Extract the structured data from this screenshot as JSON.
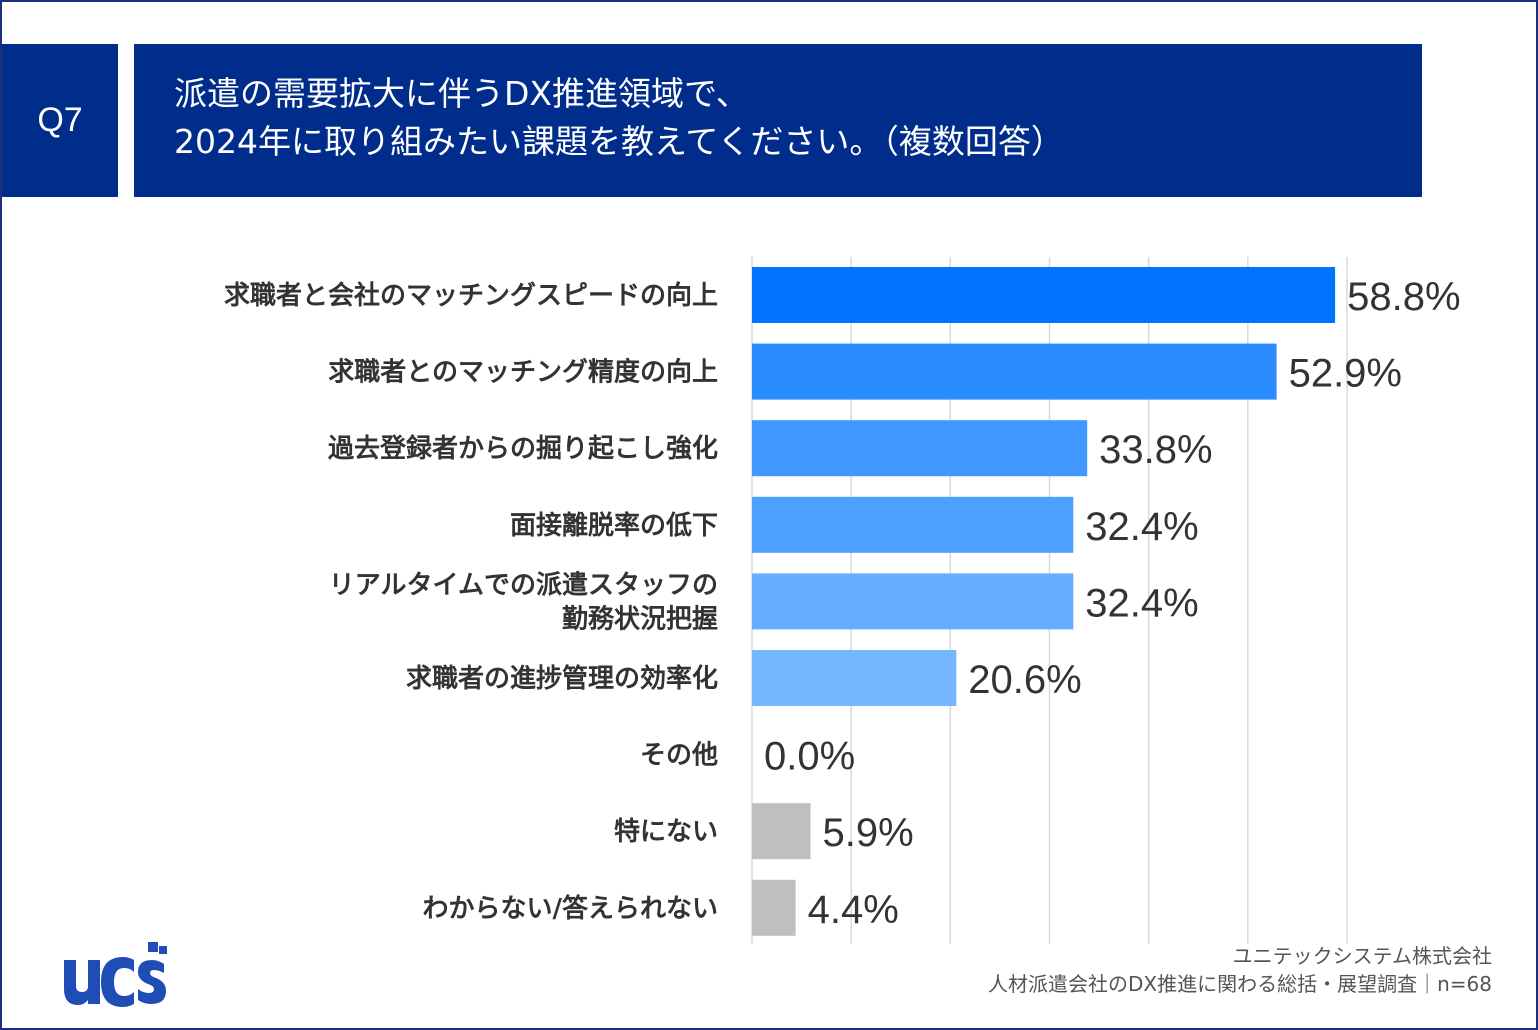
{
  "header": {
    "question_number": "Q7",
    "title_line1": "派遣の需要拡大に伴うDX推進領域で、",
    "title_line2": "2024年に取り組みたい課題を教えてください。（複数回答）"
  },
  "footer": {
    "company": "ユニテックシステム株式会社",
    "survey": "人材派遣会社のDX推進に関わる総括・展望調査｜n=68"
  },
  "logo": {
    "text": "ucs",
    "icon": "ucs-logo"
  },
  "colors": {
    "header_bg": "#002d8c",
    "border": "#1b2f7e",
    "bars": [
      "#0073ff",
      "#2b8cff",
      "#3f97ff",
      "#4ca0ff",
      "#64adff",
      "#75b7ff",
      "#bfbfbf",
      "#bfbfbf",
      "#bfbfbf"
    ],
    "gridline": "#d9d9d9",
    "text": "#333333"
  },
  "chart_data": {
    "type": "bar",
    "orientation": "horizontal",
    "categories": [
      [
        "求職者と会社のマッチングスピードの向上"
      ],
      [
        "求職者とのマッチング精度の向上"
      ],
      [
        "過去登録者からの掘り起こし強化"
      ],
      [
        "面接離脱率の低下"
      ],
      [
        "リアルタイムでの派遣スタッフの",
        "勤務状況把握"
      ],
      [
        "求職者の進捗管理の効率化"
      ],
      [
        "その他"
      ],
      [
        "特にない"
      ],
      [
        "わからない/答えられない"
      ]
    ],
    "values": [
      58.8,
      52.9,
      33.8,
      32.4,
      32.4,
      20.6,
      0.0,
      5.9,
      4.4
    ],
    "value_labels": [
      "58.8%",
      "52.9%",
      "33.8%",
      "32.4%",
      "32.4%",
      "20.6%",
      "0.0%",
      "5.9%",
      "4.4%"
    ],
    "xlim": [
      0,
      60
    ],
    "grid": true,
    "grid_step": 10
  }
}
